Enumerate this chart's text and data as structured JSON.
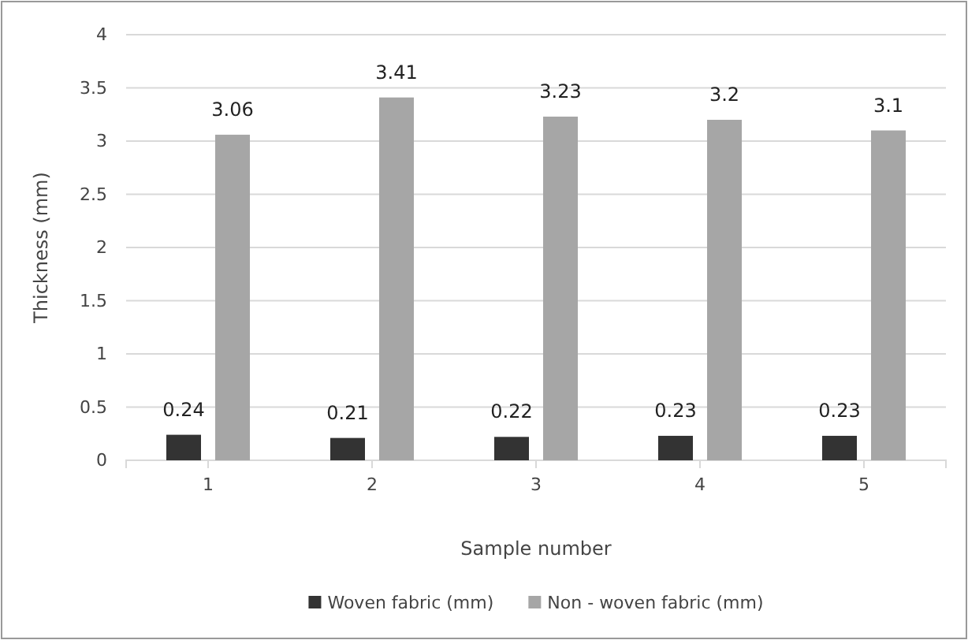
{
  "chart_data": {
    "type": "bar",
    "xlabel": "Sample number",
    "ylabel": "Thickness (mm)",
    "categories": [
      "1",
      "2",
      "3",
      "4",
      "5"
    ],
    "series": [
      {
        "name": "Woven fabric  (mm)",
        "color": "#333333",
        "values": [
          0.24,
          0.21,
          0.22,
          0.23,
          0.23
        ]
      },
      {
        "name": "Non - woven fabric  (mm)",
        "color": "#a6a6a6",
        "values": [
          3.06,
          3.41,
          3.23,
          3.2,
          3.1
        ]
      }
    ],
    "ylim": [
      0,
      4
    ],
    "yticks": [
      0,
      0.5,
      1,
      1.5,
      2,
      2.5,
      3,
      3.5,
      4
    ],
    "grid": "y",
    "legend": "bottom",
    "data_labels": true
  }
}
